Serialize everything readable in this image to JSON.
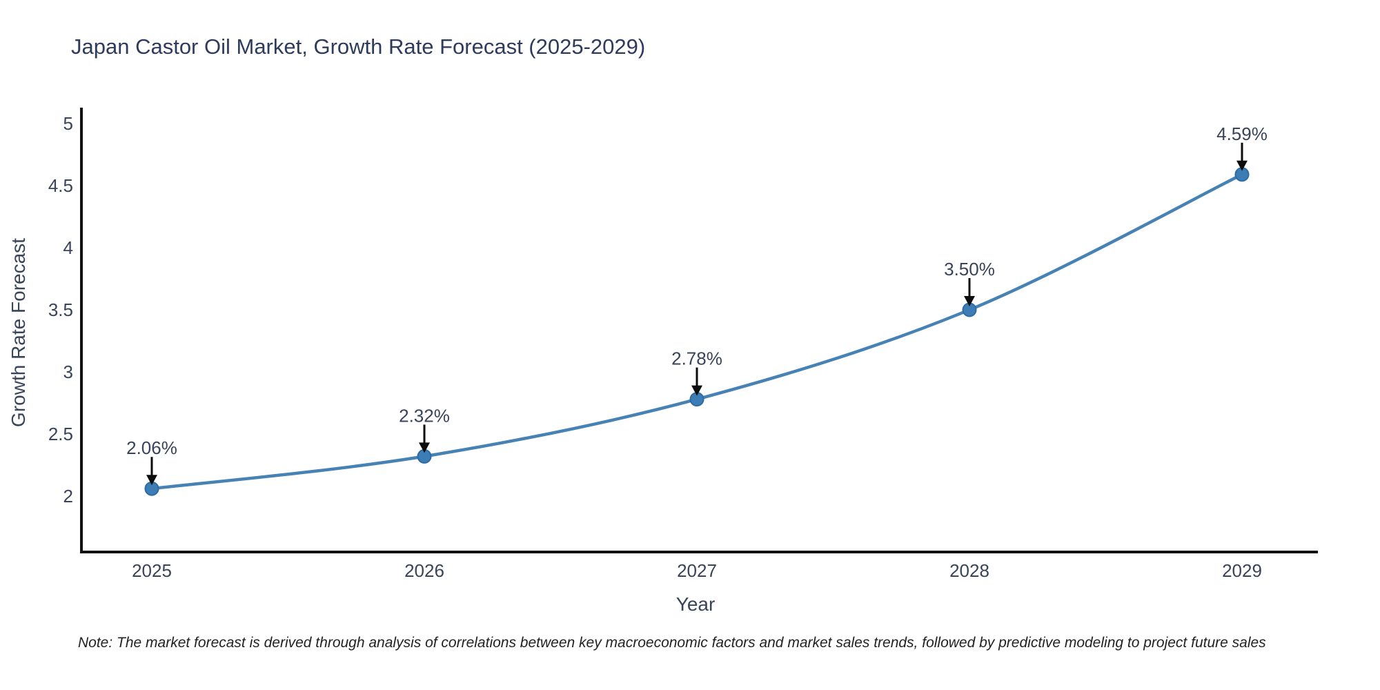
{
  "chart_data": {
    "type": "line",
    "title": "Japan Castor Oil Market, Growth Rate Forecast (2025-2029)",
    "xlabel": "Year",
    "ylabel": "Growth Rate Forecast",
    "categories": [
      "2025",
      "2026",
      "2027",
      "2028",
      "2029"
    ],
    "values": [
      2.06,
      2.32,
      2.78,
      3.5,
      4.59
    ],
    "point_labels": [
      "2.06%",
      "2.32%",
      "2.78%",
      "3.50%",
      "4.59%"
    ],
    "y_ticks": [
      2,
      2.5,
      3,
      3.5,
      4,
      4.5,
      5
    ],
    "ylim": [
      1.55,
      5.1
    ],
    "grid": false,
    "legend": "none",
    "annotations": "black arrow pointing down from each percentage label to its data point",
    "line_color": "#4682b4",
    "marker_fill": "#3d7db6",
    "marker_edge": "#2f6ba3",
    "arrow_color": "#0d0d0d",
    "axis_color": "#121212",
    "tick_text_color": "#39435a",
    "label_text_color": "#39435a",
    "title_color": "#2f3b5c"
  },
  "note": {
    "text": "Note: The market forecast is derived through analysis of correlations between key macroeconomic factors and market sales trends, followed by predictive modeling to project future sales"
  }
}
